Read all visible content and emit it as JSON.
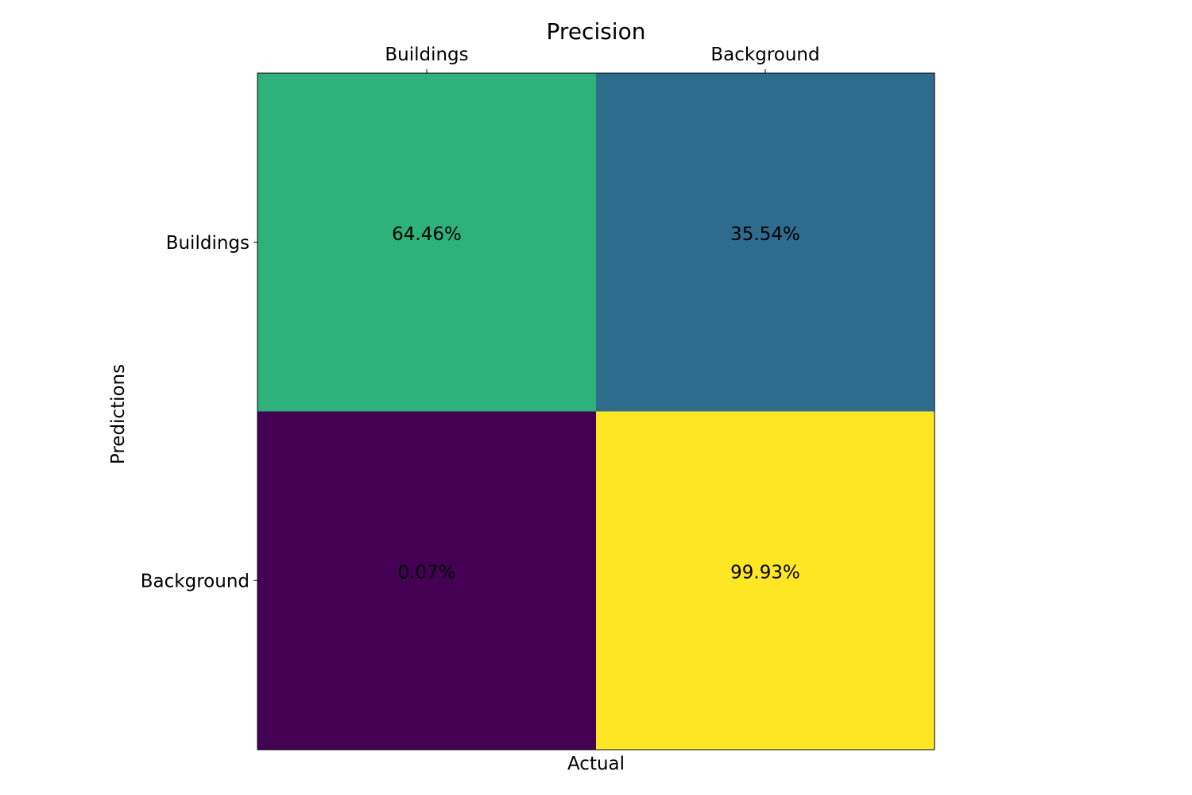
{
  "chart_data": {
    "type": "heatmap",
    "title": "Precision",
    "xlabel": "Actual",
    "ylabel": "Predictions",
    "x_categories": [
      "Buildings",
      "Background"
    ],
    "y_categories": [
      "Buildings",
      "Background"
    ],
    "values": [
      [
        64.46,
        35.54
      ],
      [
        0.07,
        99.93
      ]
    ],
    "cell_labels": [
      [
        "64.46%",
        "35.54%"
      ],
      [
        "0.07%",
        "99.93%"
      ]
    ],
    "colors": [
      [
        "#2fb17c",
        "#2e6c8e"
      ],
      [
        "#440154",
        "#fde725"
      ]
    ],
    "colormap": "viridis",
    "x_axis_position": "top",
    "grid": false
  }
}
